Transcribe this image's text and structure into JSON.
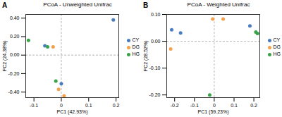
{
  "chart_data": [
    {
      "type": "scatter",
      "panel_label": "A",
      "title": "PCoA - Unweighted Unifrac",
      "x_label": "PC1 (42.93%)",
      "y_label": "PC2 (24.38%)",
      "xlim": [
        -0.13,
        0.21
      ],
      "ylim": [
        -0.46,
        0.44
      ],
      "xticks": [
        -0.1,
        0,
        0.1,
        0.2
      ],
      "yticks": [
        {
          "value": -0.4,
          "label": "-0.40"
        },
        {
          "value": -0.2,
          "label": "-0.20"
        },
        {
          "value": 0,
          "label": "0.00"
        },
        {
          "value": 0.2,
          "label": "0.20"
        },
        {
          "value": 0.4,
          "label": "0.40"
        }
      ],
      "legend": "right",
      "marker": "circle",
      "series": [
        {
          "name": "CY",
          "color": "#4a7cc0",
          "x": [
            0.19,
            0.0,
            -0.06
          ],
          "y": [
            0.38,
            -0.31,
            0.1
          ]
        },
        {
          "name": "DG",
          "color": "#f5a04c",
          "x": [
            -0.03,
            -0.01,
            0.01
          ],
          "y": [
            0.09,
            -0.37,
            -0.44
          ]
        },
        {
          "name": "HG",
          "color": "#3aa34a",
          "x": [
            -0.12,
            -0.05,
            -0.02
          ],
          "y": [
            0.16,
            0.09,
            -0.28
          ]
        }
      ]
    },
    {
      "type": "scatter",
      "panel_label": "B",
      "title": "PCoA - Weighted Unifrac",
      "x_label": "PC1 (59.23%)",
      "y_label": "PC2 (28.52%)",
      "xlim": [
        -0.24,
        0.23
      ],
      "ylim": [
        -0.21,
        0.1
      ],
      "xticks": [
        -0.2,
        -0.1,
        0,
        0.1,
        0.2
      ],
      "yticks": [
        {
          "value": -0.2,
          "label": "-0.20"
        },
        {
          "value": -0.1,
          "label": "-0.10"
        },
        {
          "value": 0,
          "label": "0.00"
        },
        {
          "value": 0.1,
          "label": "0.10"
        }
      ],
      "legend": "right",
      "marker": "circle",
      "series": [
        {
          "name": "CY",
          "color": "#4a7cc0",
          "x": [
            -0.215,
            -0.17,
            0.18
          ],
          "y": [
            0.043,
            0.031,
            0.057
          ]
        },
        {
          "name": "DG",
          "color": "#f5a04c",
          "x": [
            -0.22,
            -0.008,
            0.045
          ],
          "y": [
            -0.029,
            0.083,
            0.083
          ]
        },
        {
          "name": "HG",
          "color": "#3aa34a",
          "x": [
            0.21,
            0.218,
            -0.023
          ],
          "y": [
            0.034,
            0.029,
            -0.2
          ]
        }
      ]
    }
  ]
}
